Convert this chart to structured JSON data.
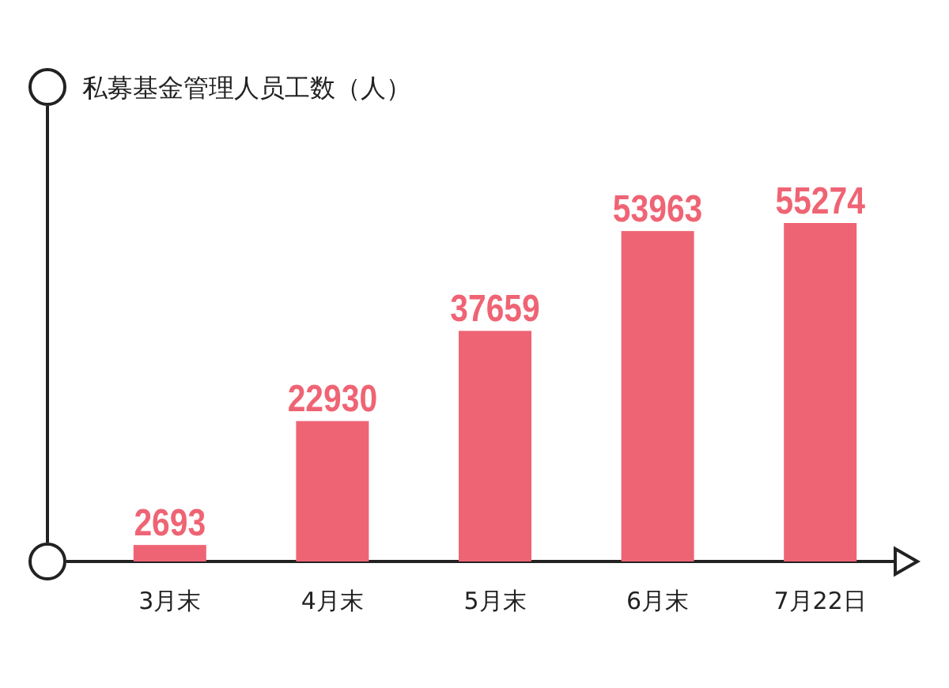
{
  "chart_data": {
    "type": "bar",
    "ylabel": "私募基金管理人员工数（人）",
    "categories": [
      "3月末",
      "4月末",
      "5月末",
      "6月末",
      "7月22日"
    ],
    "values": [
      2693,
      22930,
      37659,
      53963,
      55274
    ],
    "color": "#ef6474",
    "data_labels": true
  }
}
